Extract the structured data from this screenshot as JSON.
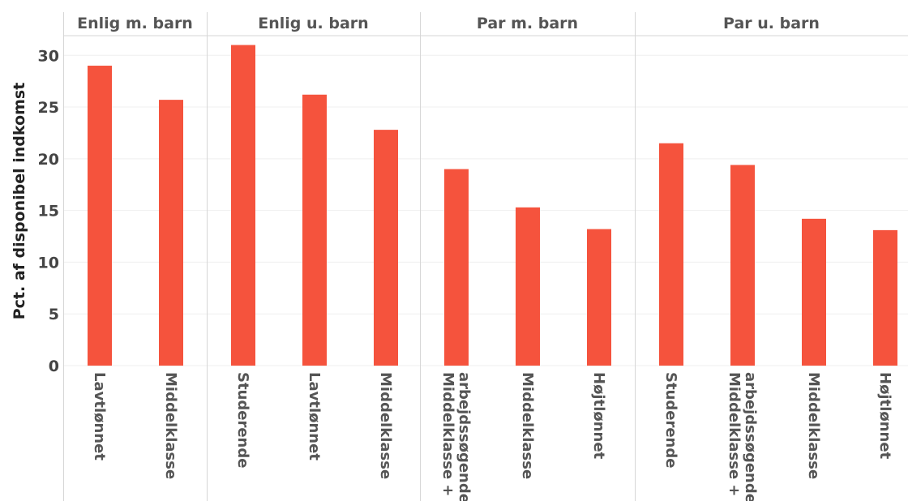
{
  "chart_data": {
    "type": "bar",
    "ylabel": "Pct. af disponibel indkomst",
    "ylim": [
      0,
      33
    ],
    "yticks": [
      0,
      5,
      10,
      15,
      20,
      25,
      30
    ],
    "grid": true,
    "bar_color": "#f5533d",
    "panels": [
      {
        "title": "Enlig m. barn",
        "categories": [
          [
            "Lavtlønnet"
          ],
          [
            "Middelklasse"
          ]
        ],
        "values": [
          29.0,
          25.7
        ]
      },
      {
        "title": "Enlig u. barn",
        "categories": [
          [
            "Studerende"
          ],
          [
            "Lavtlønnet"
          ],
          [
            "Middelklasse"
          ]
        ],
        "values": [
          31.0,
          26.2,
          22.8
        ]
      },
      {
        "title": "Par m. barn",
        "categories": [
          [
            "Middelklasse +",
            "arbejdssøgende"
          ],
          [
            "Middelklasse"
          ],
          [
            "Højtlønnet"
          ]
        ],
        "values": [
          19.0,
          15.3,
          13.2
        ]
      },
      {
        "title": "Par u. barn",
        "categories": [
          [
            "Studerende"
          ],
          [
            "Middelklasse +",
            "arbejdssøgende"
          ],
          [
            "Middelklasse"
          ],
          [
            "Højtlønnet"
          ]
        ],
        "values": [
          21.5,
          19.4,
          14.2,
          13.1
        ]
      }
    ]
  }
}
